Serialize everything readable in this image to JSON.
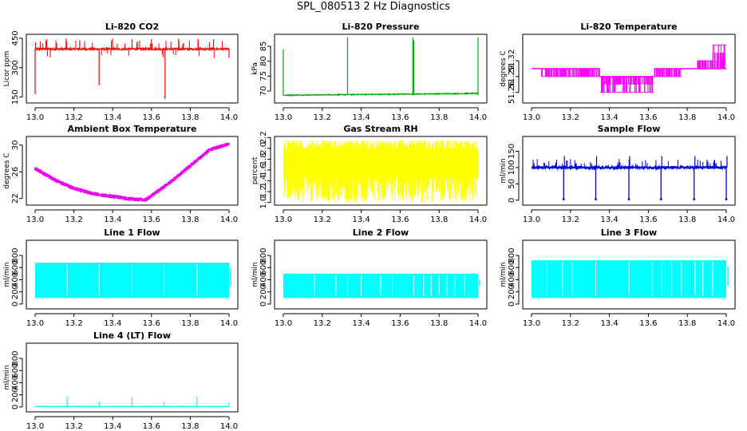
{
  "main_title": "SPL_080513  2 Hz Diagnostics",
  "chart_data": [
    {
      "type": "line",
      "title": "Li-820 CO2",
      "xlabel": "",
      "ylabel": "Licor ppm",
      "xlim": [
        13.0,
        14.0
      ],
      "ylim": [
        120,
        470
      ],
      "xticks": [
        "13.0",
        "13.2",
        "13.4",
        "13.6",
        "13.8",
        "14.0"
      ],
      "yticks": [
        150,
        300,
        450
      ],
      "color": "#ff0000",
      "baseline": 395,
      "noise": 10,
      "spikes": [
        {
          "x": 13.0,
          "y": 165
        },
        {
          "x": 13.06,
          "y": 445
        },
        {
          "x": 13.16,
          "y": 448
        },
        {
          "x": 13.23,
          "y": 440
        },
        {
          "x": 13.33,
          "y": 210
        },
        {
          "x": 13.4,
          "y": 448
        },
        {
          "x": 13.5,
          "y": 445
        },
        {
          "x": 13.6,
          "y": 446
        },
        {
          "x": 13.67,
          "y": 140
        },
        {
          "x": 13.74,
          "y": 448
        },
        {
          "x": 13.84,
          "y": 446
        },
        {
          "x": 13.92,
          "y": 445
        },
        {
          "x": 14.0,
          "y": 350
        }
      ]
    },
    {
      "type": "line",
      "title": "Li-820 Pressure",
      "xlabel": "",
      "ylabel": "kPa",
      "xlim": [
        13.0,
        14.0
      ],
      "ylim": [
        66,
        89
      ],
      "xticks": [
        "13.0",
        "13.2",
        "13.4",
        "13.6",
        "13.8",
        "14.0"
      ],
      "yticks": [
        70,
        75,
        80,
        85
      ],
      "color": "#00aa00",
      "baseline": 68.6,
      "drift_end": 69.2,
      "noise": 0.3,
      "spikes": [
        {
          "x": 13.0,
          "y": 84
        },
        {
          "x": 13.33,
          "y": 88
        },
        {
          "x": 13.665,
          "y": 88
        },
        {
          "x": 13.67,
          "y": 87
        },
        {
          "x": 14.0,
          "y": 88
        }
      ]
    },
    {
      "type": "line",
      "title": "Li-820 Temperature",
      "xlabel": "",
      "ylabel": "degrees C",
      "xlim": [
        13.0,
        14.0
      ],
      "ylim": [
        51.24,
        51.37
      ],
      "xticks": [
        "13.0",
        "13.2",
        "13.4",
        "13.6",
        "13.8",
        "14.0"
      ],
      "yticks": [
        51.26,
        51.29,
        51.32
      ],
      "color": "#ff00ff",
      "segments": [
        {
          "x0": 13.0,
          "x1": 13.05,
          "levels": [
            51.305
          ]
        },
        {
          "x0": 13.05,
          "x1": 13.35,
          "levels": [
            51.305,
            51.29
          ]
        },
        {
          "x0": 13.35,
          "x1": 13.63,
          "levels": [
            51.29,
            51.275,
            51.26
          ]
        },
        {
          "x0": 13.63,
          "x1": 13.77,
          "levels": [
            51.305,
            51.29
          ]
        },
        {
          "x0": 13.77,
          "x1": 13.85,
          "levels": [
            51.305
          ]
        },
        {
          "x0": 13.85,
          "x1": 13.93,
          "levels": [
            51.305,
            51.32
          ]
        },
        {
          "x0": 13.93,
          "x1": 14.0,
          "levels": [
            51.305,
            51.32,
            51.335,
            51.35
          ]
        }
      ]
    },
    {
      "type": "line",
      "title": "Ambient Box Temperature",
      "xlabel": "",
      "ylabel": "degrees C",
      "xlim": [
        13.0,
        14.0
      ],
      "ylim": [
        21,
        31.3
      ],
      "xticks": [
        "13.0",
        "13.2",
        "13.4",
        "13.6",
        "13.8",
        "14.0"
      ],
      "yticks": [
        22,
        26,
        30
      ],
      "color": "#ee00ee",
      "band": 0.6,
      "x": [
        13.0,
        13.1,
        13.2,
        13.3,
        13.4,
        13.5,
        13.57,
        13.6,
        13.7,
        13.8,
        13.9,
        14.0
      ],
      "y": [
        26.5,
        24.8,
        23.5,
        22.7,
        22.3,
        21.9,
        21.8,
        22.4,
        24.5,
        26.9,
        29.3,
        30.2
      ]
    },
    {
      "type": "line",
      "title": "Gas Stream RH",
      "xlabel": "",
      "ylabel": "percent",
      "xlim": [
        13.0,
        14.0
      ],
      "ylim": [
        0.95,
        2.22
      ],
      "xticks": [
        "13.0",
        "13.2",
        "13.4",
        "13.6",
        "13.8",
        "14.0"
      ],
      "yticks": [
        1.0,
        1.2,
        1.4,
        1.6,
        1.8,
        2.0,
        2.2
      ],
      "color": "#ffff00",
      "y_low": 1.0,
      "y_high": 2.18,
      "core_low": 1.45,
      "core_high": 2.0
    },
    {
      "type": "line",
      "title": "Sample Flow",
      "xlabel": "",
      "ylabel": "ml/min",
      "xlim": [
        13.0,
        14.0
      ],
      "ylim": [
        -15,
        195
      ],
      "xticks": [
        "13.0",
        "13.2",
        "13.4",
        "13.6",
        "13.8",
        "14.0"
      ],
      "yticks": [
        0,
        50,
        100,
        150
      ],
      "color": "#0000dd",
      "baseline": 100,
      "noise": 6,
      "dips": [
        13.165,
        13.33,
        13.5,
        13.665,
        13.835,
        14.0
      ],
      "dip_y": 3
    },
    {
      "type": "line",
      "title": "Line 1 Flow",
      "xlabel": "",
      "ylabel": "ml/min",
      "xlim": [
        13.0,
        14.0
      ],
      "ylim": [
        -80,
        1050
      ],
      "xticks": [
        "13.0",
        "13.2",
        "13.4",
        "13.6",
        "13.8",
        "14.0"
      ],
      "yticks": [
        0,
        200,
        400,
        600,
        800
      ],
      "color": "#00ffff",
      "y_low": 100,
      "y_high": 680,
      "gaps": [
        13.165,
        13.33,
        13.5,
        13.665,
        13.835
      ]
    },
    {
      "type": "line",
      "title": "Line 2 Flow",
      "xlabel": "",
      "ylabel": "ml/min",
      "xlim": [
        13.0,
        14.0
      ],
      "ylim": [
        -80,
        1050
      ],
      "xticks": [
        "13.0",
        "13.2",
        "13.4",
        "13.6",
        "13.8",
        "14.0"
      ],
      "yticks": [
        0,
        200,
        400,
        600,
        800
      ],
      "color": "#00ffff",
      "y_low": 100,
      "y_high": 500,
      "gaps": [
        13.16,
        13.27,
        13.33,
        13.4,
        13.5,
        13.56,
        13.67,
        13.72,
        13.76,
        13.8,
        13.84,
        13.88,
        13.93
      ]
    },
    {
      "type": "line",
      "title": "Line 3 Flow",
      "xlabel": "",
      "ylabel": "ml/min",
      "xlim": [
        13.0,
        14.0
      ],
      "ylim": [
        -80,
        1050
      ],
      "xticks": [
        "13.0",
        "13.2",
        "13.4",
        "13.6",
        "13.8",
        "14.0"
      ],
      "yticks": [
        0,
        200,
        400,
        600,
        800
      ],
      "color": "#00ffff",
      "y_low": 100,
      "y_high": 720,
      "gaps": [
        13.08,
        13.16,
        13.21,
        13.33,
        13.5,
        13.62,
        13.67,
        13.72,
        13.77,
        13.84,
        13.88,
        13.93
      ]
    },
    {
      "type": "line",
      "title": "Line 4 (LT) Flow",
      "xlabel": "",
      "ylabel": "ml/min",
      "xlim": [
        13.0,
        14.0
      ],
      "ylim": [
        -80,
        1050
      ],
      "xticks": [
        "13.0",
        "13.2",
        "13.4",
        "13.6",
        "13.8",
        "14.0"
      ],
      "yticks": [
        0,
        200,
        400,
        600,
        800
      ],
      "color": "#00ffff",
      "baseline": 8,
      "noise": 6,
      "spikes": [
        {
          "x": 13.165,
          "y": 160
        },
        {
          "x": 13.33,
          "y": 90
        },
        {
          "x": 13.5,
          "y": 160
        },
        {
          "x": 13.665,
          "y": 90
        },
        {
          "x": 13.835,
          "y": 160
        },
        {
          "x": 14.0,
          "y": 80
        }
      ]
    }
  ]
}
